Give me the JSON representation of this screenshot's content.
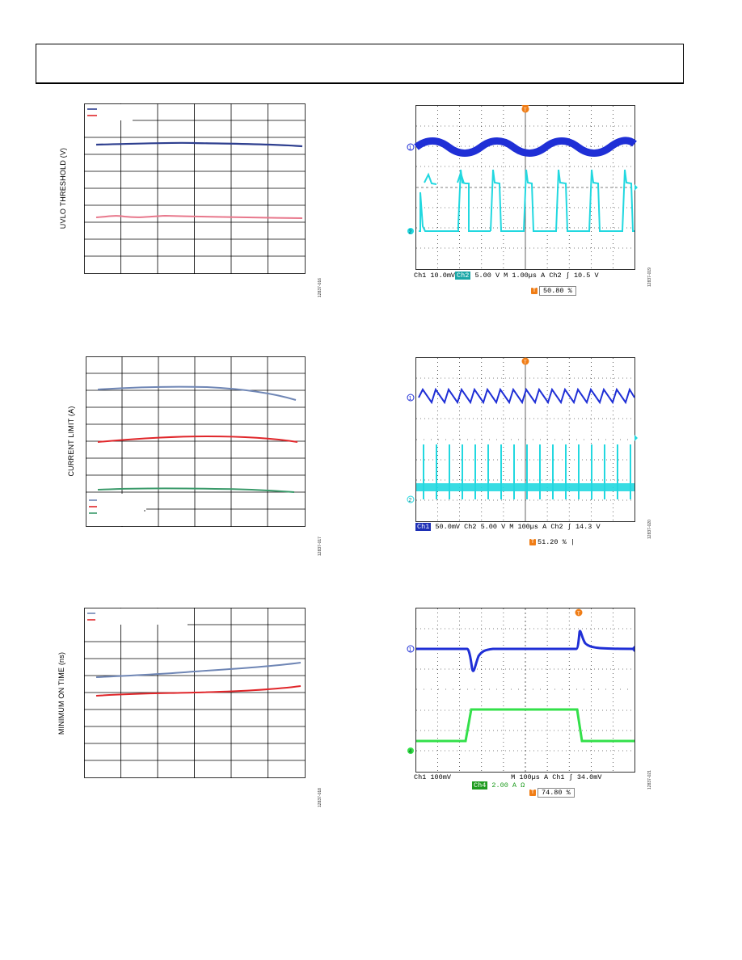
{
  "charts": [
    {
      "ylabel": "UVLO THRESHOLD (V)",
      "fig_id": "12837-016"
    },
    {
      "ylabel": "CURRENT LIMIT (A)",
      "fig_id": "12837-017"
    },
    {
      "ylabel": "MINIMUM ON TIME (ns)",
      "fig_id": "12837-018"
    }
  ],
  "scopes": [
    {
      "fig_id": "12837-019",
      "bar": {
        "ch1_label": "Ch1",
        "ch1_scale": "10.0mV",
        "ch2_label": "Ch2",
        "ch2_scale": "5.00 V",
        "time": "M 1.00µs",
        "trig_mode": "A",
        "trig_ch": "Ch2",
        "trig_level": "10.5 V"
      },
      "trigger_pos": "50.80 %",
      "markers": {
        "ch1": "1",
        "ch2": "2"
      }
    },
    {
      "fig_id": "12837-020",
      "bar": {
        "ch1_label": "Ch1",
        "ch1_scale": "50.0mV",
        "ch2_label": "Ch2",
        "ch2_scale": "5.00 V",
        "time": "M 100µs",
        "trig_mode": "A",
        "trig_ch": "Ch2",
        "trig_level": "14.3 V"
      },
      "trigger_pos": "51.20 %",
      "markers": {
        "ch1": "1",
        "ch2": "2"
      }
    },
    {
      "fig_id": "12837-021",
      "bar": {
        "ch1_label": "Ch1",
        "ch1_scale": "100mV",
        "ch2_label": "Ch4",
        "ch2_scale": "2.00 A Ω",
        "time": "M 100µs",
        "trig_mode": "A",
        "trig_ch": "Ch1",
        "trig_level": "34.0mV"
      },
      "trigger_pos": "74.80 %",
      "markers": {
        "ch1": "1",
        "ch2": "4"
      }
    }
  ],
  "colors": {
    "dark_blue": "#2e3f8f",
    "pink": "#e8788c",
    "steel_blue": "#6f86b5",
    "red": "#e0262a",
    "green": "#3a9a6a",
    "scope_blue": "#1f2fd6",
    "scope_cyan": "#22d8e0",
    "scope_green": "#33e04a",
    "trigger_orange": "#f07d16"
  }
}
